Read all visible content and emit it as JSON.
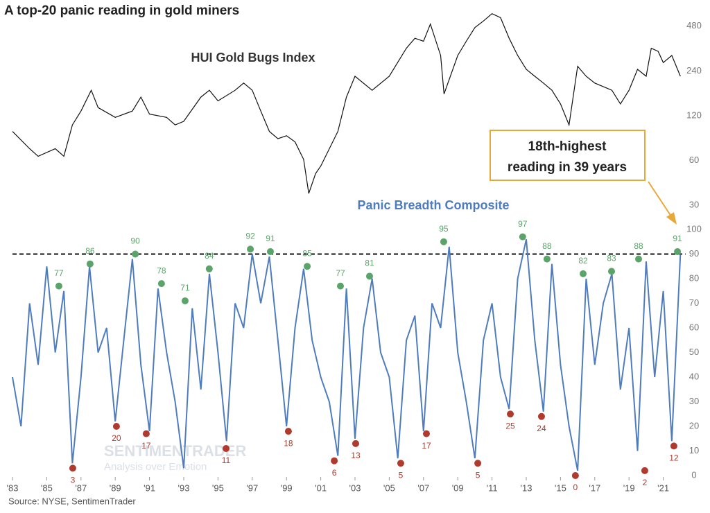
{
  "chart_data": [
    {
      "type": "line",
      "title": "A top-20 panic reading in gold miners",
      "label": "HUI Gold Bugs Index",
      "log": true,
      "xlim": [
        1983,
        2022.3
      ],
      "ylim": [
        30,
        640
      ],
      "yticks": [
        30,
        60,
        120,
        240,
        480
      ],
      "x": [
        1983.0,
        1984.0,
        1984.5,
        1985.5,
        1986.0,
        1986.5,
        1987.0,
        1987.6,
        1988.0,
        1989.0,
        1990.0,
        1990.5,
        1991.0,
        1992.0,
        1992.5,
        1993.0,
        1994.0,
        1994.5,
        1995.0,
        1996.0,
        1996.5,
        1997.0,
        1997.5,
        1998.0,
        1998.5,
        1999.0,
        1999.5,
        2000.0,
        2000.3,
        2000.7,
        2001.0,
        2002.0,
        2002.5,
        2003.0,
        2004.0,
        2005.0,
        2006.0,
        2006.5,
        2007.0,
        2007.4,
        2008.0,
        2008.2,
        2009.0,
        2009.5,
        2010.0,
        2010.5,
        2011.0,
        2011.5,
        2012.0,
        2012.5,
        2013.0,
        2013.5,
        2014.0,
        2014.5,
        2015.0,
        2015.5,
        2016.0,
        2016.5,
        2017.0,
        2018.0,
        2018.5,
        2019.0,
        2019.5,
        2020.0,
        2020.3,
        2020.7,
        2021.0,
        2021.5,
        2022.0
      ],
      "series": [
        {
          "color": "#111111",
          "values": [
            94,
            72,
            64,
            72,
            64,
            104,
            129,
            178,
            136,
            117,
            129,
            160,
            123,
            117,
            104,
            110,
            160,
            178,
            151,
            178,
            199,
            178,
            129,
            94,
            84,
            88,
            80,
            61,
            36,
            49,
            55,
            94,
            160,
            221,
            178,
            221,
            341,
            398,
            380,
            496,
            305,
            168,
            305,
            380,
            470,
            520,
            583,
            548,
            398,
            305,
            246,
            221,
            199,
            178,
            144,
            104,
            258,
            221,
            199,
            178,
            144,
            178,
            246,
            221,
            341,
            325,
            273,
            305,
            221
          ]
        }
      ]
    },
    {
      "type": "line",
      "label": "Panic Breadth Composite",
      "annotation": [
        "18th-highest",
        "reading in 39 years"
      ],
      "source": "Source: NYSE, SentimenTrader",
      "watermark": [
        "SENTIMENTRADER",
        "Analysis over Emotion"
      ],
      "xlim": [
        1983,
        2022.3
      ],
      "ylim": [
        0,
        100
      ],
      "yticks": [
        0,
        10,
        20,
        30,
        40,
        50,
        60,
        70,
        80,
        90,
        100
      ],
      "threshold": 90,
      "xticks": [
        {
          "value": 1983,
          "label": "'83"
        },
        {
          "value": 1985,
          "label": "'85"
        },
        {
          "value": 1987,
          "label": "'87"
        },
        {
          "value": 1989,
          "label": "'89"
        },
        {
          "value": 1991,
          "label": "'91"
        },
        {
          "value": 1993,
          "label": "'93"
        },
        {
          "value": 1995,
          "label": "'95"
        },
        {
          "value": 1997,
          "label": "'97"
        },
        {
          "value": 1999,
          "label": "'99"
        },
        {
          "value": 2001,
          "label": "'01"
        },
        {
          "value": 2003,
          "label": "'03"
        },
        {
          "value": 2005,
          "label": "'05"
        },
        {
          "value": 2007,
          "label": "'07"
        },
        {
          "value": 2009,
          "label": "'09"
        },
        {
          "value": 2011,
          "label": "'11"
        },
        {
          "value": 2013,
          "label": "'13"
        },
        {
          "value": 2015,
          "label": "'15"
        },
        {
          "value": 2017,
          "label": "'17"
        },
        {
          "value": 2019,
          "label": "'19"
        },
        {
          "value": 2021,
          "label": "'21"
        }
      ],
      "x": [
        1983.0,
        1983.5,
        1984.0,
        1984.5,
        1985.0,
        1985.5,
        1986.0,
        1986.5,
        1987.0,
        1987.5,
        1988.0,
        1988.5,
        1989.0,
        1989.5,
        1990.0,
        1990.5,
        1991.0,
        1991.5,
        1992.0,
        1992.5,
        1993.0,
        1993.5,
        1994.0,
        1994.5,
        1995.0,
        1995.5,
        1996.0,
        1996.5,
        1997.0,
        1997.5,
        1998.0,
        1998.5,
        1999.0,
        1999.5,
        2000.0,
        2000.5,
        2001.0,
        2001.5,
        2002.0,
        2002.5,
        2003.0,
        2003.5,
        2004.0,
        2004.5,
        2005.0,
        2005.5,
        2006.0,
        2006.5,
        2007.0,
        2007.5,
        2008.0,
        2008.5,
        2009.0,
        2009.5,
        2010.0,
        2010.5,
        2011.0,
        2011.5,
        2012.0,
        2012.5,
        2013.0,
        2013.5,
        2014.0,
        2014.5,
        2015.0,
        2015.5,
        2016.0,
        2016.5,
        2017.0,
        2017.5,
        2018.0,
        2018.5,
        2019.0,
        2019.5,
        2020.0,
        2020.5,
        2021.0,
        2021.5,
        2022.0
      ],
      "series": [
        {
          "color": "#4f7cbf",
          "values": [
            40,
            20,
            70,
            45,
            85,
            50,
            75,
            5,
            40,
            85,
            50,
            60,
            22,
            55,
            88,
            45,
            18,
            76,
            50,
            30,
            3,
            68,
            35,
            82,
            50,
            14,
            70,
            60,
            90,
            70,
            89,
            55,
            20,
            60,
            84,
            55,
            40,
            30,
            8,
            76,
            15,
            60,
            80,
            50,
            40,
            7,
            55,
            65,
            18,
            70,
            60,
            93,
            50,
            30,
            7,
            55,
            70,
            40,
            27,
            80,
            96,
            55,
            26,
            86,
            45,
            20,
            2,
            80,
            45,
            70,
            82,
            35,
            60,
            10,
            87,
            40,
            75,
            14,
            90
          ]
        }
      ],
      "peaks": {
        "color": "#5aa469",
        "x": [
          1985.71,
          1987.53,
          1990.17,
          1991.7,
          1993.08,
          1994.49,
          1996.89,
          1998.06,
          2000.21,
          2002.15,
          2003.85,
          2008.18,
          2012.79,
          2014.21,
          2016.32,
          2017.98,
          2019.56,
          2021.83
        ],
        "values": [
          77,
          86,
          90,
          78,
          71,
          84,
          92,
          91,
          85,
          77,
          81,
          95,
          97,
          88,
          82,
          83,
          88,
          91
        ]
      },
      "troughs": {
        "color": "#b03a2e",
        "x": [
          1986.52,
          1989.07,
          1990.81,
          1995.47,
          1999.11,
          2001.79,
          2003.04,
          2005.67,
          2007.17,
          2010.17,
          2012.07,
          2013.89,
          2015.87,
          2019.92,
          2021.62
        ],
        "values": [
          3,
          20,
          17,
          11,
          18,
          6,
          13,
          5,
          17,
          5,
          25,
          24,
          0,
          2,
          12
        ]
      }
    }
  ]
}
